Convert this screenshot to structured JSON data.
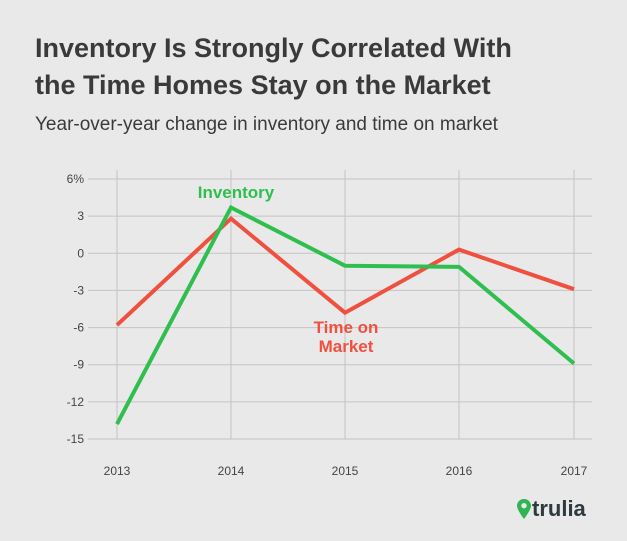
{
  "title_lines": [
    "Inventory Is Strongly Correlated With",
    "the Time Homes Stay on the Market"
  ],
  "subtitle": "Year-over-year change in inventory and time on market",
  "logo": {
    "text": "trulia",
    "icon": "map-pin-icon",
    "color": "#2fb553"
  },
  "chart_data": {
    "type": "line",
    "x": [
      "2013",
      "2014",
      "2015",
      "2016",
      "2017"
    ],
    "ylim": [
      -15,
      6
    ],
    "yticks": [
      6,
      3,
      0,
      -3,
      -6,
      -9,
      -12,
      -15
    ],
    "ytick_labels": [
      "6%",
      "3",
      "0",
      "-3",
      "-6",
      "-9",
      "-12",
      "-15"
    ],
    "grid": true,
    "series": [
      {
        "name": "Inventory",
        "color": "#2ebf4f",
        "values": [
          -13.8,
          3.7,
          -1.0,
          -1.1,
          -8.9
        ]
      },
      {
        "name": "Time on Market",
        "color": "#f0503f",
        "values": [
          -5.8,
          2.8,
          -4.8,
          0.3,
          -2.9
        ]
      }
    ],
    "series_labels": [
      {
        "lines": [
          "Inventory"
        ],
        "color": "#2ebf4f"
      },
      {
        "lines": [
          "Time on",
          "Market"
        ],
        "color": "#f0503f"
      }
    ]
  }
}
